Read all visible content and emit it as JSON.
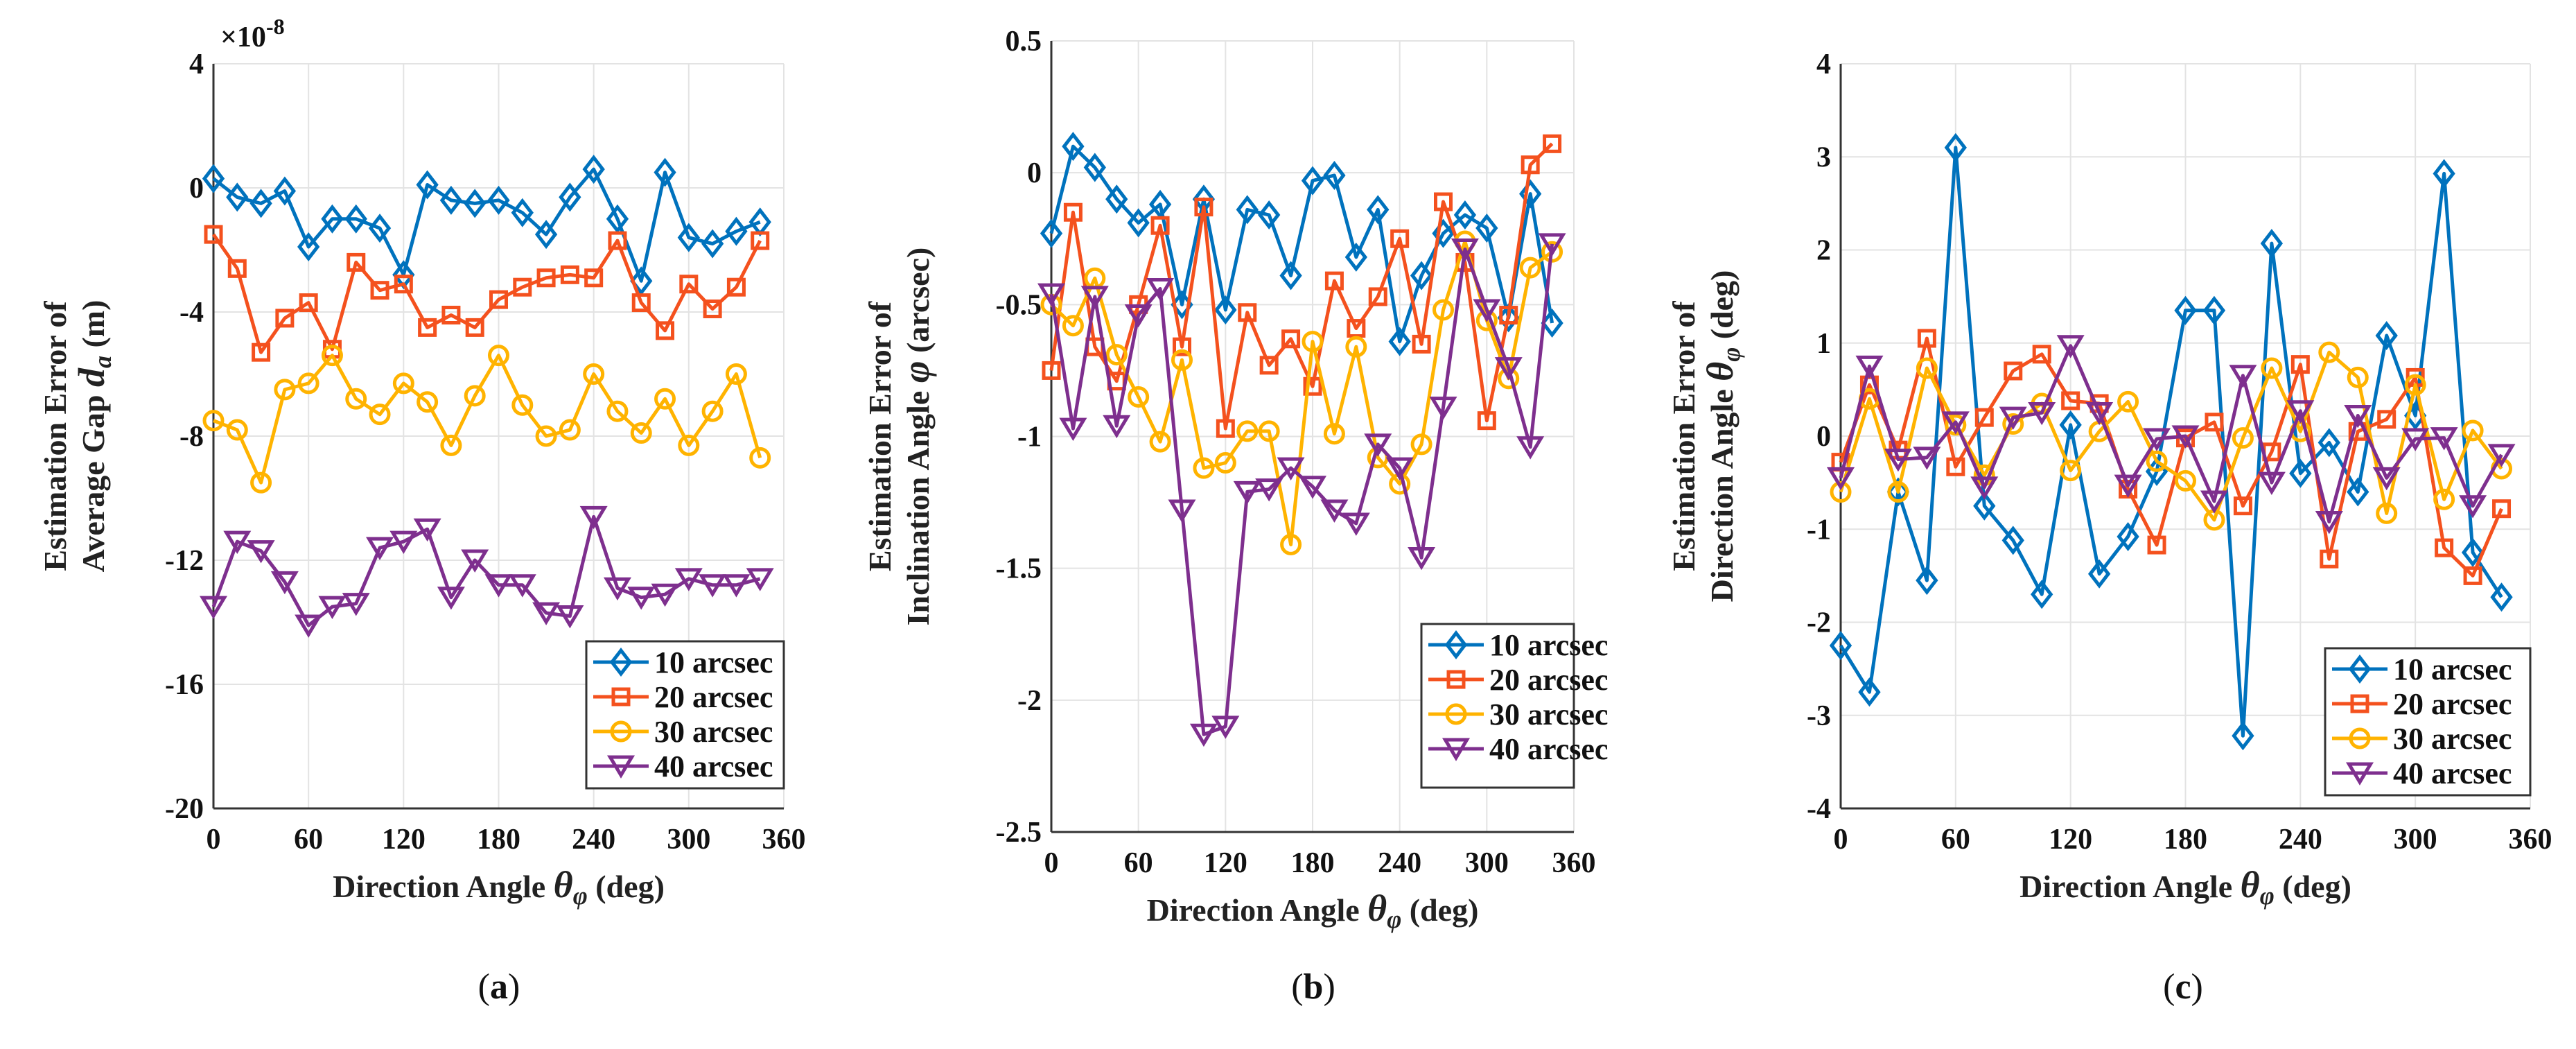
{
  "chart_data": [
    {
      "type": "line",
      "caption": "a",
      "title": "",
      "xlabel": "Direction Angle θφ (deg)",
      "ylabel_line1": "Estimation Error of",
      "ylabel_line2": "Average Gap da (m)",
      "y_multiplier": "×10-8",
      "xlim": [
        0,
        360
      ],
      "ylim": [
        -20,
        4
      ],
      "xticks": [
        0,
        60,
        120,
        180,
        240,
        300,
        360
      ],
      "yticks": [
        -20,
        -16,
        -12,
        -8,
        -4,
        0,
        4
      ],
      "grid": true,
      "legend_position": "bottom-right",
      "x": [
        0,
        15,
        30,
        45,
        60,
        75,
        90,
        105,
        120,
        135,
        150,
        165,
        180,
        195,
        210,
        225,
        240,
        255,
        270,
        285,
        300,
        315,
        330,
        345
      ],
      "series": [
        {
          "name": "10 arcsec",
          "color": "#0072BD",
          "marker": "diamond",
          "values": [
            0.3,
            -0.3,
            -0.5,
            -0.1,
            -1.9,
            -1.0,
            -1.0,
            -1.3,
            -2.8,
            0.1,
            -0.4,
            -0.5,
            -0.4,
            -0.8,
            -1.5,
            -0.3,
            0.6,
            -1.0,
            -3.0,
            0.5,
            -1.6,
            -1.8,
            -1.4,
            -1.1
          ]
        },
        {
          "name": "20 arcsec",
          "color": "#F4511E",
          "marker": "square",
          "values": [
            -1.5,
            -2.6,
            -5.3,
            -4.2,
            -3.7,
            -5.2,
            -2.4,
            -3.3,
            -3.1,
            -4.5,
            -4.1,
            -4.5,
            -3.6,
            -3.2,
            -2.9,
            -2.8,
            -2.9,
            -1.7,
            -3.7,
            -4.6,
            -3.1,
            -3.9,
            -3.2,
            -1.7
          ]
        },
        {
          "name": "30 arcsec",
          "color": "#FFB300",
          "marker": "circle",
          "values": [
            -7.5,
            -7.8,
            -9.5,
            -6.5,
            -6.3,
            -5.4,
            -6.8,
            -7.3,
            -6.3,
            -6.9,
            -8.3,
            -6.7,
            -5.4,
            -7.0,
            -8.0,
            -7.8,
            -6.0,
            -7.2,
            -7.9,
            -6.8,
            -8.3,
            -7.2,
            -6.0,
            -8.7
          ]
        },
        {
          "name": "40 arcsec",
          "color": "#7E2F8E",
          "marker": "triangle-down",
          "values": [
            -13.5,
            -11.4,
            -11.7,
            -12.7,
            -14.1,
            -13.5,
            -13.4,
            -11.6,
            -11.4,
            -11.0,
            -13.2,
            -12.0,
            -12.8,
            -12.8,
            -13.7,
            -13.8,
            -10.6,
            -12.9,
            -13.2,
            -13.1,
            -12.6,
            -12.8,
            -12.8,
            -12.6
          ]
        }
      ]
    },
    {
      "type": "line",
      "caption": "b",
      "title": "",
      "xlabel": "Direction Angle θφ (deg)",
      "ylabel_line1": "Estimation Error of",
      "ylabel_line2": "Inclination Angle  φ  (arcsec)",
      "y_multiplier": "",
      "xlim": [
        0,
        360
      ],
      "ylim": [
        -2.5,
        0.5
      ],
      "xticks": [
        0,
        60,
        120,
        180,
        240,
        300,
        360
      ],
      "yticks": [
        -2.5,
        -2,
        -1.5,
        -1,
        -0.5,
        0,
        0.5
      ],
      "grid": true,
      "legend_position": "bottom-right",
      "x": [
        0,
        15,
        30,
        45,
        60,
        75,
        90,
        105,
        120,
        135,
        150,
        165,
        180,
        195,
        210,
        225,
        240,
        255,
        270,
        285,
        300,
        315,
        330,
        345
      ],
      "series": [
        {
          "name": "10 arcsec",
          "color": "#0072BD",
          "marker": "diamond",
          "values": [
            -0.23,
            0.1,
            0.02,
            -0.1,
            -0.19,
            -0.12,
            -0.5,
            -0.1,
            -0.52,
            -0.14,
            -0.16,
            -0.39,
            -0.03,
            -0.01,
            -0.32,
            -0.14,
            -0.64,
            -0.39,
            -0.23,
            -0.16,
            -0.21,
            -0.55,
            -0.08,
            -0.57
          ]
        },
        {
          "name": "20 arcsec",
          "color": "#F4511E",
          "marker": "square",
          "values": [
            -0.75,
            -0.15,
            -0.66,
            -0.79,
            -0.5,
            -0.2,
            -0.66,
            -0.13,
            -0.97,
            -0.53,
            -0.73,
            -0.63,
            -0.81,
            -0.41,
            -0.59,
            -0.47,
            -0.25,
            -0.65,
            -0.11,
            -0.34,
            -0.94,
            -0.54,
            0.03,
            0.11
          ]
        },
        {
          "name": "30 arcsec",
          "color": "#FFB300",
          "marker": "circle",
          "values": [
            -0.5,
            -0.58,
            -0.4,
            -0.69,
            -0.85,
            -1.02,
            -0.71,
            -1.12,
            -1.1,
            -0.98,
            -0.98,
            -1.41,
            -0.64,
            -0.99,
            -0.66,
            -1.08,
            -1.18,
            -1.03,
            -0.52,
            -0.26,
            -0.56,
            -0.78,
            -0.36,
            -0.3
          ]
        },
        {
          "name": "40 arcsec",
          "color": "#7E2F8E",
          "marker": "triangle-down",
          "values": [
            -0.46,
            -0.97,
            -0.47,
            -0.96,
            -0.54,
            -0.44,
            -1.28,
            -2.13,
            -2.1,
            -1.21,
            -1.2,
            -1.12,
            -1.19,
            -1.28,
            -1.33,
            -1.03,
            -1.12,
            -1.46,
            -0.89,
            -0.29,
            -0.52,
            -0.74,
            -1.04,
            -0.27
          ]
        }
      ]
    },
    {
      "type": "line",
      "caption": "c",
      "title": "",
      "xlabel": "Direction Angle θφ (deg)",
      "ylabel_line1": "Estimation Error of",
      "ylabel_line2": "Direction Angle θφ (deg)",
      "y_multiplier": "",
      "xlim": [
        0,
        360
      ],
      "ylim": [
        -4,
        4
      ],
      "xticks": [
        0,
        60,
        120,
        180,
        240,
        300,
        360
      ],
      "yticks": [
        -4,
        -3,
        -2,
        -1,
        0,
        1,
        2,
        3,
        4
      ],
      "grid": true,
      "legend_position": "bottom-right",
      "x": [
        0,
        15,
        30,
        45,
        60,
        75,
        90,
        105,
        120,
        135,
        150,
        165,
        180,
        195,
        210,
        225,
        240,
        255,
        270,
        285,
        300,
        315,
        330,
        345
      ],
      "series": [
        {
          "name": "10 arcsec",
          "color": "#0072BD",
          "marker": "diamond",
          "values": [
            -2.25,
            -2.75,
            -0.6,
            -1.55,
            3.1,
            -0.75,
            -1.12,
            -1.7,
            0.12,
            -1.48,
            -1.08,
            -0.38,
            1.35,
            1.35,
            -3.22,
            2.07,
            -0.4,
            -0.07,
            -0.6,
            1.08,
            0.22,
            2.82,
            -1.25,
            -1.73
          ]
        },
        {
          "name": "20 arcsec",
          "color": "#F4511E",
          "marker": "square",
          "values": [
            -0.28,
            0.55,
            -0.15,
            1.05,
            -0.33,
            0.2,
            0.7,
            0.88,
            0.38,
            0.35,
            -0.57,
            -1.17,
            -0.02,
            0.15,
            -0.75,
            -0.17,
            0.77,
            -1.32,
            0.05,
            0.18,
            0.63,
            -1.2,
            -1.5,
            -0.78
          ]
        },
        {
          "name": "30 arcsec",
          "color": "#FFB300",
          "marker": "circle",
          "values": [
            -0.6,
            0.4,
            -0.6,
            0.73,
            0.12,
            -0.42,
            0.13,
            0.35,
            -0.37,
            0.05,
            0.37,
            -0.27,
            -0.48,
            -0.9,
            -0.02,
            0.73,
            0.05,
            0.9,
            0.63,
            -0.83,
            0.55,
            -0.68,
            0.06,
            -0.35
          ]
        },
        {
          "name": "40 arcsec",
          "color": "#7E2F8E",
          "marker": "triangle-down",
          "values": [
            -0.45,
            0.75,
            -0.25,
            -0.23,
            0.15,
            -0.55,
            0.2,
            0.25,
            0.97,
            0.25,
            -0.53,
            -0.03,
            0.0,
            -0.7,
            0.65,
            -0.5,
            0.27,
            -0.92,
            0.22,
            -0.45,
            -0.03,
            -0.02,
            -0.75,
            -0.2
          ]
        }
      ]
    }
  ]
}
